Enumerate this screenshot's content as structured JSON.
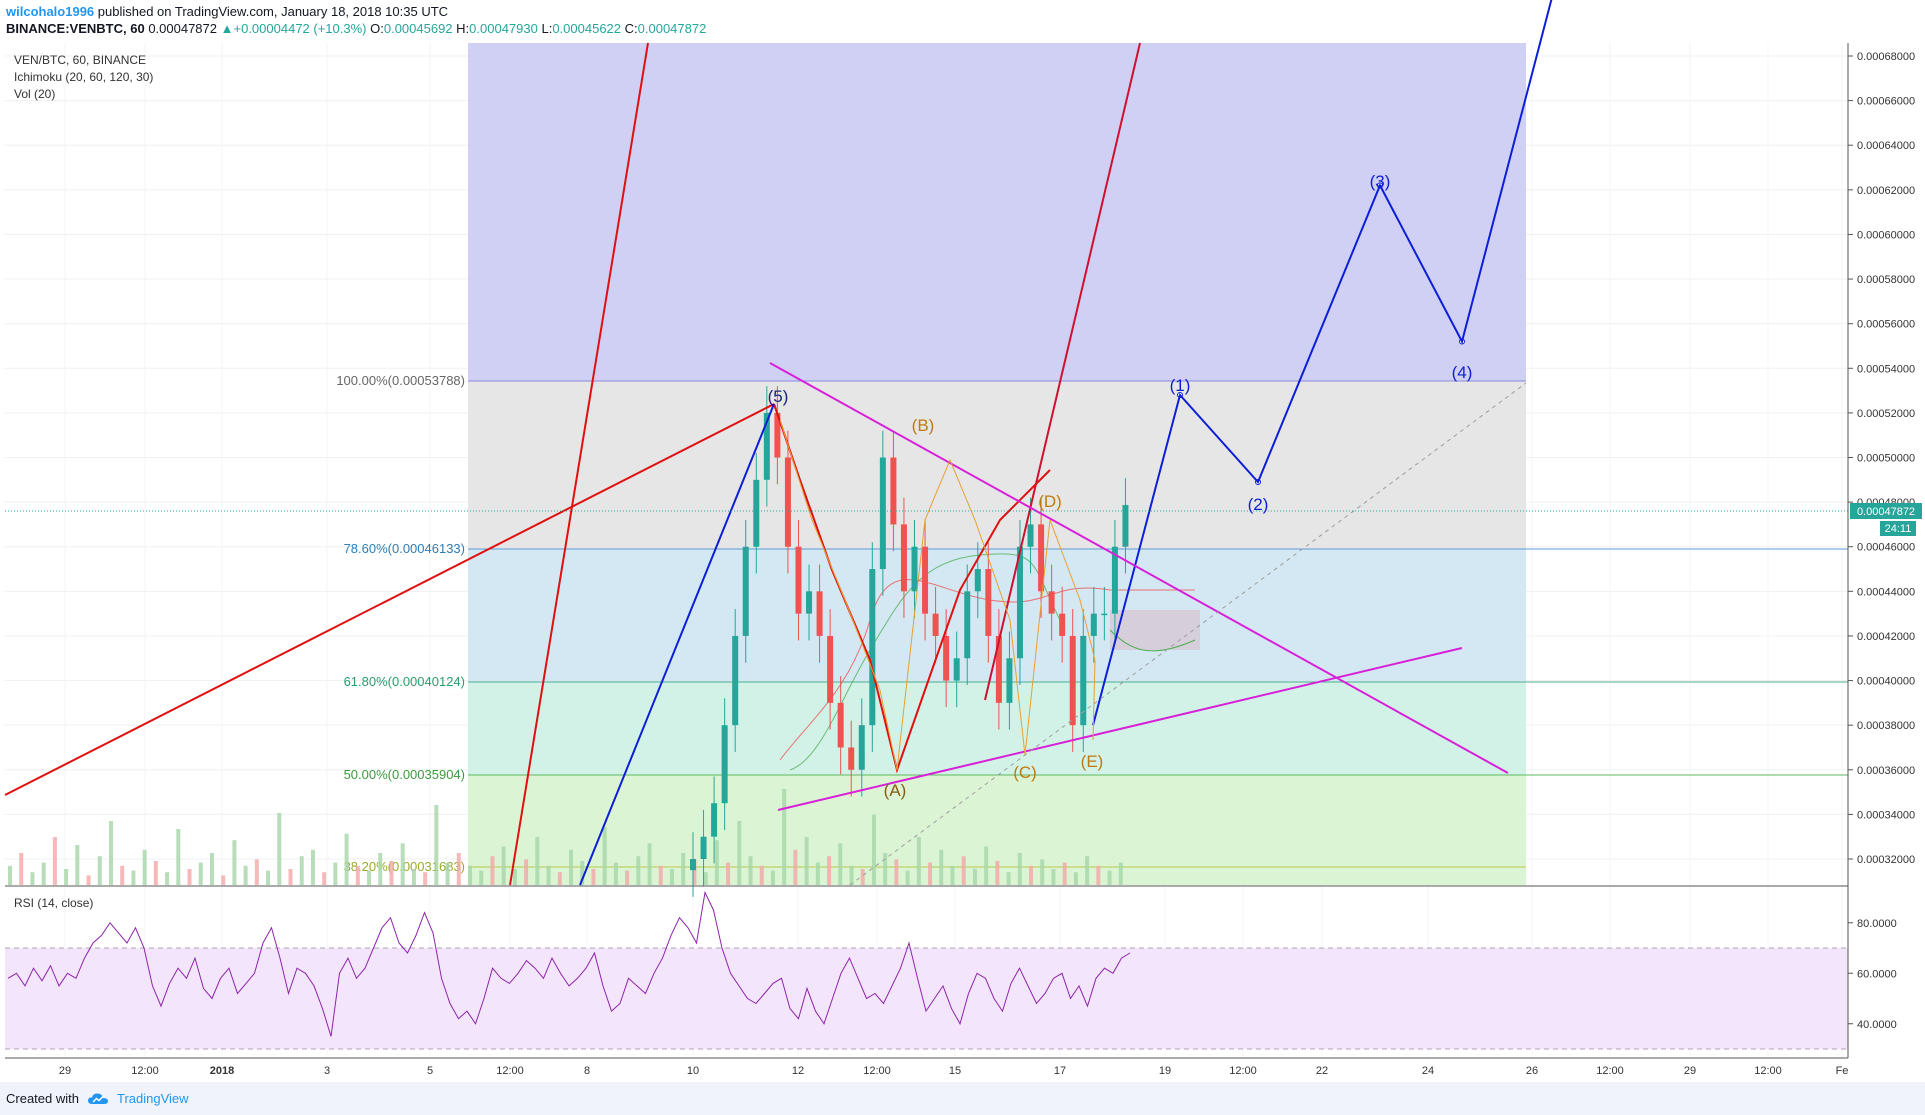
{
  "header": {
    "user": "wilcohalo1996",
    "published": "published on TradingView.com, January 18, 2018 10:35 UTC",
    "symbol": "BINANCE:VENBTC, 60",
    "last": "0.00047872",
    "change_arrow": "▲",
    "change": "+0.00004472 (+10.3%)",
    "o_label": "O:",
    "o": "0.00045692",
    "h_label": "H:",
    "h": "0.00047930",
    "l_label": "L:",
    "l": "0.00045622",
    "c_label": "C:",
    "c": "0.00047872"
  },
  "legend": {
    "title": "VEN/BTC, 60, BINANCE",
    "ichimoku": "Ichimoku (20, 60, 120, 30)",
    "vol": "Vol (20)",
    "rsi": "RSI (14, close)"
  },
  "footer": {
    "created_with": "Created with",
    "brand": "TradingView"
  },
  "colors": {
    "fib_blue": "#2962ff",
    "fib_green": "#4caf50",
    "up": "#26a69a",
    "down": "#ef5350",
    "wave_blue": "#0d1fd6",
    "wave_red": "#e01010",
    "triangle": "#d820d8",
    "abc": "#d4880f",
    "rsi": "#8e24aa"
  },
  "chart_data": [
    {
      "type": "candlestick",
      "title": "VEN/BTC, 60, BINANCE",
      "ylim": [
        0.0003,
        0.0007
      ],
      "y_ticks": [
        "0.00068000",
        "0.00066000",
        "0.00064000",
        "0.00062000",
        "0.00060000",
        "0.00058000",
        "0.00056000",
        "0.00054000",
        "0.00052000",
        "0.00050000",
        "0.00048000",
        "0.00046000",
        "0.00044000",
        "0.00042000",
        "0.00040000",
        "0.00038000",
        "0.00036000",
        "0.00034000",
        "0.00032000"
      ],
      "x_ticks": [
        "29",
        "12:00",
        "2018",
        "3",
        "5",
        "12:00",
        "8",
        "10",
        "12",
        "12:00",
        "15",
        "17",
        "19",
        "12:00",
        "22",
        "24",
        "26",
        "12:00",
        "29",
        "12:00",
        "Fe"
      ],
      "last_price_label": "0.00047872",
      "countdown_label": "24:11",
      "fib_levels": [
        {
          "label": "100.00%(0.00053788)",
          "value": 0.00053788
        },
        {
          "label": "78.60%(0.00046133)",
          "value": 0.00046133
        },
        {
          "label": "61.80%(0.00040124)",
          "value": 0.00040124
        },
        {
          "label": "50.00%(0.00035904)",
          "value": 0.00035904
        },
        {
          "label": "38.20%(0.00031683)",
          "value": 0.00031683
        }
      ],
      "wave_labels": {
        "white_5": "(5)",
        "B": "(B)",
        "D": "(D)",
        "C": "(C)",
        "E": "(E)",
        "A4": "(A)",
        "w1": "(1)",
        "w2": "(2)",
        "w3": "(3)",
        "w4": "(4)"
      },
      "projection_path": [
        0.00038,
        0.000528,
        0.000489,
        0.000622,
        0.000552,
        0.00072
      ],
      "price_close_series": [
        0.000315,
        0.00032,
        0.00033,
        0.000345,
        0.00038,
        0.00042,
        0.00046,
        0.00049,
        0.00052,
        0.0005,
        0.00046,
        0.00043,
        0.00044,
        0.00042,
        0.00039,
        0.00037,
        0.00036,
        0.00038,
        0.00045,
        0.0005,
        0.00047,
        0.00044,
        0.00046,
        0.00043,
        0.00042,
        0.0004,
        0.00041,
        0.00044,
        0.00045,
        0.00042,
        0.00039,
        0.00041,
        0.00046,
        0.00047,
        0.00044,
        0.00043,
        0.00042,
        0.00038,
        0.00042,
        0.00043,
        0.00043,
        0.00046,
        0.00047872
      ]
    },
    {
      "type": "line",
      "title": "RSI (14, close)",
      "ylim": [
        25,
        95
      ],
      "y_ticks": [
        "80.0000",
        "60.0000",
        "40.0000"
      ],
      "bands": [
        70,
        30
      ],
      "values": [
        58,
        60,
        55,
        62,
        57,
        63,
        55,
        60,
        58,
        66,
        72,
        75,
        80,
        76,
        72,
        78,
        70,
        55,
        47,
        56,
        62,
        58,
        66,
        54,
        50,
        58,
        62,
        52,
        56,
        60,
        72,
        78,
        66,
        52,
        62,
        60,
        55,
        46,
        35,
        60,
        66,
        58,
        62,
        70,
        78,
        82,
        72,
        68,
        75,
        84,
        76,
        58,
        48,
        42,
        45,
        40,
        50,
        62,
        58,
        56,
        60,
        65,
        62,
        58,
        66,
        60,
        55,
        58,
        62,
        68,
        55,
        45,
        48,
        58,
        55,
        52,
        60,
        66,
        75,
        82,
        78,
        72,
        92,
        85,
        70,
        60,
        55,
        50,
        48,
        52,
        56,
        58,
        46,
        42,
        54,
        45,
        40,
        50,
        60,
        66,
        58,
        50,
        52,
        48,
        55,
        62,
        72,
        58,
        45,
        50,
        55,
        46,
        40,
        52,
        60,
        58,
        50,
        45,
        56,
        62,
        55,
        48,
        52,
        58,
        60,
        50,
        55,
        47,
        58,
        62,
        60,
        66,
        68
      ]
    },
    {
      "type": "bar",
      "title": "Vol (20)",
      "values": [
        12,
        20,
        8,
        14,
        30,
        10,
        25,
        6,
        18,
        40,
        12,
        9,
        22,
        15,
        8,
        35,
        10,
        14,
        20,
        6,
        28,
        12,
        16,
        9,
        45,
        10,
        18,
        22,
        8,
        14,
        32,
        12,
        9,
        20,
        15,
        26,
        10,
        8,
        50,
        14,
        20,
        12,
        9,
        18,
        24,
        10,
        16,
        30,
        12,
        8,
        22,
        15,
        10,
        36,
        14,
        9,
        18,
        26,
        12,
        10,
        20,
        16,
        8,
        28,
        14,
        40,
        18,
        12,
        9,
        60,
        22,
        30,
        14,
        18,
        26,
        12,
        10,
        44,
        20,
        16,
        9,
        30,
        14,
        22,
        12,
        18,
        10,
        24,
        15,
        8,
        20,
        12,
        16,
        10,
        14,
        8,
        18,
        12,
        9,
        14
      ]
    }
  ]
}
